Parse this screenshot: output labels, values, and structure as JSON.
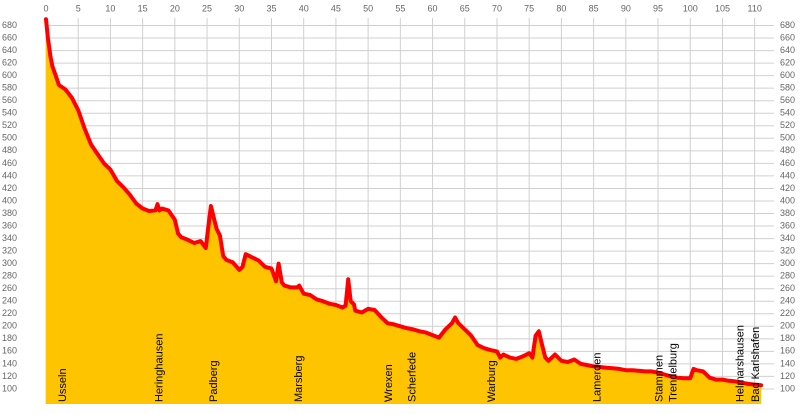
{
  "chart_data": {
    "type": "area",
    "color": "#ffc400",
    "line_color": "#ff0000",
    "grid": true,
    "xlim": [
      0,
      113
    ],
    "ylim": [
      76,
      692
    ],
    "xticks": [
      0,
      5,
      10,
      15,
      20,
      25,
      30,
      35,
      40,
      45,
      50,
      55,
      60,
      65,
      70,
      75,
      80,
      85,
      90,
      95,
      100,
      105,
      110
    ],
    "yticks": [
      100,
      120,
      140,
      160,
      180,
      200,
      220,
      240,
      260,
      280,
      300,
      320,
      340,
      360,
      380,
      400,
      420,
      440,
      460,
      480,
      500,
      520,
      540,
      560,
      580,
      600,
      620,
      640,
      660,
      680
    ],
    "x": [
      0,
      0.3,
      0.7,
      1,
      1.5,
      2,
      3,
      4,
      5,
      6,
      7,
      8,
      9,
      10,
      11,
      12,
      13,
      14,
      15,
      16,
      17,
      17.3,
      17.6,
      18,
      19,
      20,
      20.5,
      21,
      22,
      23,
      24,
      24.8,
      25.2,
      25.6,
      26,
      26.5,
      27,
      27.5,
      28,
      29,
      30,
      30.5,
      31,
      32,
      33,
      34,
      35,
      35.7,
      36.1,
      36.6,
      37,
      38,
      39,
      39.3,
      40,
      41,
      42,
      43,
      44,
      45,
      46,
      46.5,
      46.9,
      47.3,
      47.8,
      48,
      49,
      50,
      51,
      52,
      53,
      54,
      55,
      56,
      57,
      58,
      59,
      60,
      61,
      62,
      63,
      63.5,
      64,
      65,
      66,
      67,
      68,
      69,
      70,
      70.5,
      71,
      72,
      73,
      74,
      75,
      75.5,
      76,
      76.5,
      77,
      77.5,
      78,
      79,
      80,
      81,
      82,
      83,
      84,
      85,
      86,
      87,
      88,
      89,
      90,
      91,
      92,
      93,
      94,
      95,
      96,
      97,
      98,
      99,
      100,
      100.5,
      101,
      102,
      103,
      104,
      105,
      106,
      107,
      108,
      109,
      110,
      111
    ],
    "values": [
      690,
      660,
      630,
      615,
      600,
      585,
      578,
      565,
      545,
      515,
      490,
      475,
      460,
      450,
      432,
      422,
      410,
      396,
      388,
      384,
      385,
      395,
      385,
      388,
      385,
      370,
      348,
      342,
      338,
      333,
      336,
      325,
      360,
      392,
      375,
      355,
      345,
      312,
      306,
      302,
      290,
      295,
      315,
      310,
      305,
      295,
      292,
      272,
      300,
      270,
      265,
      262,
      262,
      265,
      252,
      250,
      243,
      240,
      236,
      234,
      230,
      233,
      275,
      240,
      235,
      225,
      222,
      228,
      226,
      215,
      205,
      203,
      200,
      197,
      195,
      192,
      190,
      186,
      182,
      195,
      205,
      214,
      205,
      195,
      185,
      170,
      165,
      162,
      160,
      150,
      155,
      150,
      148,
      152,
      157,
      150,
      185,
      192,
      170,
      150,
      145,
      155,
      145,
      143,
      147,
      140,
      138,
      136,
      135,
      134,
      133,
      132,
      130,
      130,
      129,
      128,
      128,
      126,
      123,
      120,
      118,
      117,
      117,
      132,
      130,
      128,
      118,
      115,
      115,
      113,
      112,
      110,
      108,
      107,
      106
    ],
    "annotations": [
      {
        "x": 2,
        "label": "Usseln"
      },
      {
        "x": 17,
        "label": "Heringhausen"
      },
      {
        "x": 25.5,
        "label": "Padberg"
      },
      {
        "x": 38.7,
        "label": "Marsberg"
      },
      {
        "x": 52.6,
        "label": "Wrexen"
      },
      {
        "x": 56.3,
        "label": "Scherfede"
      },
      {
        "x": 68.6,
        "label": "Warburg"
      },
      {
        "x": 85,
        "label": "Lamerden"
      },
      {
        "x": 94.6,
        "label": "Stammen"
      },
      {
        "x": 96.8,
        "label": "Trendelburg"
      },
      {
        "x": 107.2,
        "label": "Helmarshausen"
      },
      {
        "x": 109.6,
        "label": "Bad Karlshafen"
      }
    ]
  }
}
